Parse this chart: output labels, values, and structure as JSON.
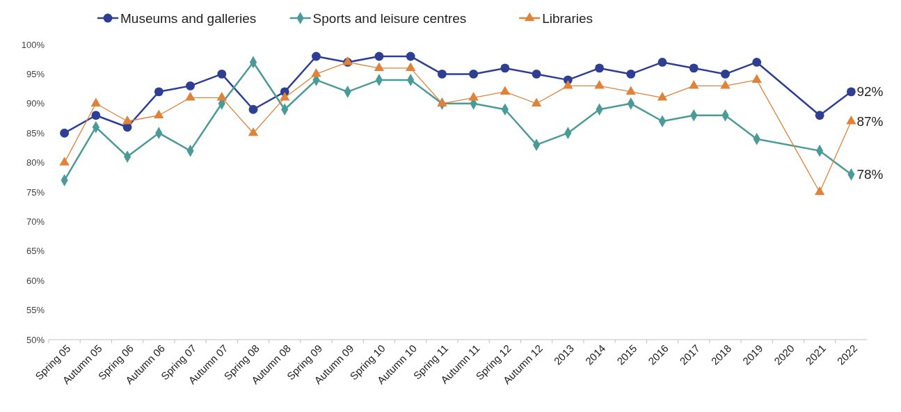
{
  "chart_data": {
    "type": "line",
    "categories": [
      "Spring 05",
      "Autumn 05",
      "Spring 06",
      "Autumn 06",
      "Spring 07",
      "Autumn 07",
      "Spring 08",
      "Autumn 08",
      "Spring 09",
      "Autumn 09",
      "Spring 10",
      "Autumn 10",
      "Spring 11",
      "Autumn 11",
      "Spring 12",
      "Autumn 12",
      "2013",
      "2014",
      "2015",
      "2016",
      "2017",
      "2018",
      "2019",
      "2020",
      "2021",
      "2022"
    ],
    "series": [
      {
        "name": "Museums and galleries",
        "color": "#2e3f93",
        "marker": "circle",
        "values": [
          85,
          88,
          86,
          92,
          93,
          95,
          89,
          92,
          98,
          97,
          98,
          98,
          95,
          95,
          96,
          95,
          94,
          96,
          95,
          97,
          96,
          95,
          97,
          null,
          88,
          92
        ],
        "value_labels": [
          null,
          null,
          null,
          null,
          null,
          null,
          null,
          null,
          null,
          null,
          null,
          null,
          null,
          null,
          null,
          null,
          null,
          null,
          null,
          null,
          null,
          null,
          null,
          null,
          null,
          "92%"
        ]
      },
      {
        "name": "Sports and leisure centres",
        "color": "#4a9b98",
        "marker": "diamond",
        "values": [
          77,
          86,
          81,
          85,
          82,
          90,
          97,
          89,
          94,
          92,
          94,
          94,
          90,
          90,
          89,
          83,
          85,
          89,
          90,
          87,
          88,
          88,
          84,
          null,
          82,
          78
        ],
        "value_labels": [
          null,
          null,
          null,
          null,
          null,
          null,
          null,
          null,
          null,
          null,
          null,
          null,
          null,
          null,
          null,
          null,
          null,
          null,
          null,
          null,
          null,
          null,
          null,
          null,
          null,
          "78%"
        ]
      },
      {
        "name": "Libraries",
        "color": "#e0833a",
        "marker": "triangle",
        "values": [
          80,
          90,
          87,
          88,
          91,
          91,
          85,
          91,
          95,
          97,
          96,
          96,
          90,
          91,
          92,
          90,
          93,
          93,
          92,
          91,
          93,
          93,
          94,
          null,
          75,
          87
        ],
        "value_labels": [
          null,
          null,
          null,
          null,
          null,
          null,
          null,
          null,
          null,
          null,
          null,
          null,
          null,
          null,
          null,
          null,
          null,
          null,
          null,
          null,
          null,
          null,
          null,
          null,
          null,
          "87%"
        ]
      }
    ],
    "ylim": [
      50,
      100
    ],
    "yticks": [
      {
        "value": 50,
        "label": "50%"
      },
      {
        "value": 55,
        "label": "55%"
      },
      {
        "value": 60,
        "label": "60%"
      },
      {
        "value": 65,
        "label": "65%"
      },
      {
        "value": 70,
        "label": "70%"
      },
      {
        "value": 75,
        "label": "75%"
      },
      {
        "value": 80,
        "label": "80%"
      },
      {
        "value": 85,
        "label": "85%"
      },
      {
        "value": 90,
        "label": "90%"
      },
      {
        "value": 95,
        "label": "95%"
      },
      {
        "value": 100,
        "label": "100%"
      }
    ],
    "grid": false,
    "legend": "top"
  }
}
